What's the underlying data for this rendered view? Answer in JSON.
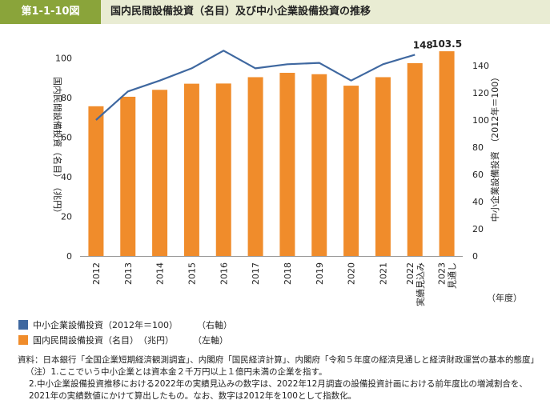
{
  "header": {
    "figure_no": "第1-1-10図",
    "title": "国内民間設備投資（名目）及び中小企業設備投資の推移"
  },
  "chart_data": {
    "type": "bar+line",
    "categories": [
      "2012",
      "2013",
      "2014",
      "2015",
      "2016",
      "2017",
      "2018",
      "2019",
      "2020",
      "2021",
      "2022\n実績見込み",
      "2023\n見通し"
    ],
    "bar_series": {
      "name": "国内民間設備投資（名目）　（兆円）　（左軸）",
      "values": [
        75.7,
        80.5,
        84.0,
        87.1,
        87.2,
        90.4,
        92.6,
        91.9,
        86.1,
        90.4,
        97.5,
        103.5
      ],
      "color": "#f08c2b"
    },
    "line_series": {
      "name": "中小企業設備投資（2012年＝100）　（右軸）",
      "values": [
        100,
        121,
        129,
        138,
        151,
        138,
        141,
        142,
        129,
        141,
        148
      ],
      "color": "#3f68a0"
    },
    "y_left": {
      "label": "国内民間設備投資（名目）　（兆円）",
      "range": [
        0,
        110
      ],
      "ticks": [
        "0",
        "20",
        "40",
        "60",
        "80",
        "100"
      ]
    },
    "y_right": {
      "label": "中小企業設備投資　（2012年＝100）",
      "range": [
        0,
        160
      ],
      "ticks": [
        "0",
        "20",
        "40",
        "60",
        "80",
        "100",
        "120",
        "140"
      ]
    },
    "x_unit": "（年度）",
    "annotations": {
      "line_last": "148",
      "bar_last": "103.5"
    }
  },
  "legend": {
    "line_label": "中小企業設備投資（2012年＝100）",
    "line_axis": "（右軸）",
    "bar_label": "国内民間設備投資（名目）　（兆円）",
    "bar_axis": "（左軸）"
  },
  "notes": {
    "source": "資料：日本銀行「全国企業短期経済観測調査」、内閣府「国民経済計算」、内閣府「令和５年度の経済見通しと経済財政運営の基本的態度」",
    "note1": "（注）1.ここでいう中小企業とは資本金２千万円以上１億円未満の企業を指す。",
    "note2": "2.中小企業設備投資推移における2022年の実績見込みの数字は、2022年12月調査の設備投資計画における前年度比の増減割合を、2021年の実績数値にかけて算出したもの。なお、数字は2012年を100として指数化。"
  }
}
